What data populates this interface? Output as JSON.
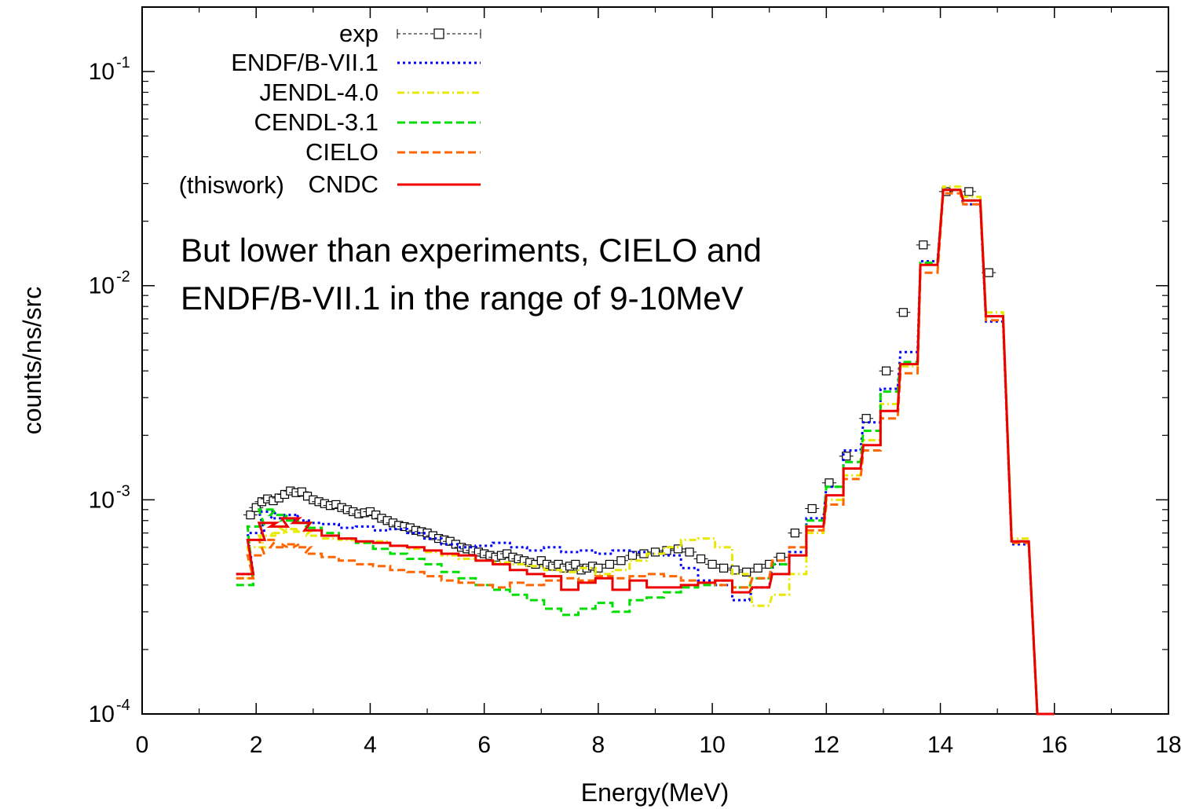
{
  "chart_data": {
    "type": "line",
    "xlabel": "Energy(MeV)",
    "ylabel": "counts/ns/src",
    "xlim": [
      0,
      18
    ],
    "ylim": [
      0.0001,
      0.2
    ],
    "y_scale": "log",
    "grid": false,
    "legend_position": "top-left",
    "x_ticks": [
      "0",
      "2",
      "4",
      "6",
      "8",
      "10",
      "12",
      "14",
      "16",
      "18"
    ],
    "y_ticks": [
      {
        "value": 0.1,
        "base": "10",
        "exp": "-1"
      },
      {
        "value": 0.01,
        "base": "10",
        "exp": "-2"
      },
      {
        "value": 0.001,
        "base": "10",
        "exp": "-3"
      },
      {
        "value": 0.0001,
        "base": "10",
        "exp": "-4"
      }
    ],
    "annotation": [
      "But lower than experiments, CIELO and",
      "ENDF/B-VII.1 in the range of 9-10MeV"
    ],
    "legend_prefix": "(thiswork)",
    "series": [
      {
        "name": "exp",
        "color": "#000000",
        "style": "markers",
        "x": [
          1.9,
          2.0,
          2.1,
          2.2,
          2.3,
          2.4,
          2.5,
          2.6,
          2.7,
          2.8,
          2.9,
          3.0,
          3.1,
          3.2,
          3.3,
          3.4,
          3.5,
          3.6,
          3.7,
          3.8,
          3.9,
          4.0,
          4.1,
          4.2,
          4.3,
          4.4,
          4.5,
          4.6,
          4.7,
          4.8,
          4.9,
          5.0,
          5.1,
          5.2,
          5.3,
          5.4,
          5.5,
          5.6,
          5.7,
          5.8,
          5.9,
          6.0,
          6.1,
          6.2,
          6.3,
          6.4,
          6.5,
          6.6,
          6.7,
          6.8,
          6.9,
          7.0,
          7.1,
          7.2,
          7.3,
          7.4,
          7.5,
          7.6,
          7.7,
          7.8,
          7.9,
          8.0,
          8.2,
          8.4,
          8.6,
          8.8,
          9.0,
          9.2,
          9.4,
          9.6,
          9.8,
          10.0,
          10.2,
          10.4,
          10.6,
          10.8,
          11.0,
          11.2,
          11.45,
          11.75,
          12.05,
          12.35,
          12.7,
          13.05,
          13.35,
          13.7,
          14.1,
          14.5,
          14.85
        ],
        "y": [
          0.00085,
          0.00092,
          0.00098,
          0.00101,
          0.00099,
          0.00102,
          0.00106,
          0.0011,
          0.00108,
          0.00109,
          0.00104,
          0.001,
          0.00098,
          0.00096,
          0.00094,
          0.00095,
          0.00092,
          0.0009,
          0.00088,
          0.00086,
          0.00087,
          0.00088,
          0.00085,
          0.00082,
          0.0008,
          0.00078,
          0.00076,
          0.00075,
          0.00074,
          0.00072,
          0.00071,
          0.0007,
          0.00068,
          0.00066,
          0.00065,
          0.00064,
          0.00062,
          0.0006,
          0.00059,
          0.00058,
          0.00057,
          0.00056,
          0.00055,
          0.00054,
          0.00055,
          0.00056,
          0.00054,
          0.00053,
          0.00052,
          0.00051,
          0.0005,
          0.00052,
          0.0005,
          0.00049,
          0.0005,
          0.00048,
          0.00049,
          0.0005,
          0.00047,
          0.00048,
          0.00049,
          0.00048,
          0.0005,
          0.00052,
          0.00055,
          0.00056,
          0.00057,
          0.00058,
          0.00059,
          0.00057,
          0.00053,
          0.0005,
          0.00048,
          0.00047,
          0.00046,
          0.00048,
          0.0005,
          0.00054,
          0.0007,
          0.00091,
          0.0012,
          0.0016,
          0.0024,
          0.004,
          0.0075,
          0.0155,
          0.0275,
          0.0275,
          0.0115
        ]
      },
      {
        "name": "ENDF/B-VII.1",
        "color": "#0000ff",
        "style": "dotted",
        "x": [
          1.8,
          2.0,
          2.2,
          2.4,
          2.6,
          2.8,
          3.0,
          3.3,
          3.6,
          3.9,
          4.2,
          4.5,
          4.8,
          5.1,
          5.4,
          5.7,
          6.0,
          6.3,
          6.6,
          6.9,
          7.2,
          7.5,
          7.8,
          8.1,
          8.4,
          8.7,
          9.0,
          9.3,
          9.6,
          9.9,
          10.2,
          10.5,
          10.85,
          11.2,
          11.5,
          11.8,
          12.15,
          12.45,
          12.8,
          13.1,
          13.45,
          13.8,
          14.2,
          14.55,
          14.95,
          15.4,
          15.85
        ],
        "y": [
          0.00045,
          0.0007,
          0.00088,
          0.00082,
          0.00085,
          0.0008,
          0.00078,
          0.00077,
          0.00074,
          0.00075,
          0.00072,
          0.00073,
          0.0007,
          0.00066,
          0.00062,
          0.0006,
          0.00061,
          0.00063,
          0.0006,
          0.00058,
          0.0006,
          0.00057,
          0.00058,
          0.00056,
          0.00058,
          0.00057,
          0.00056,
          0.00055,
          0.00048,
          0.00042,
          0.0004,
          0.00034,
          0.00039,
          0.0005,
          0.00057,
          0.00082,
          0.00115,
          0.0017,
          0.0023,
          0.0033,
          0.0049,
          0.013,
          0.028,
          0.024,
          0.0068,
          0.00062,
          0.0001
        ]
      },
      {
        "name": "JENDL-4.0",
        "color": "#e8e800",
        "style": "dashdot",
        "x": [
          1.8,
          2.0,
          2.2,
          2.4,
          2.6,
          2.8,
          3.0,
          3.3,
          3.6,
          3.9,
          4.2,
          4.5,
          4.8,
          5.1,
          5.4,
          5.7,
          6.0,
          6.3,
          6.6,
          6.9,
          7.2,
          7.5,
          7.8,
          8.1,
          8.4,
          8.7,
          9.0,
          9.3,
          9.6,
          9.9,
          10.2,
          10.5,
          10.85,
          11.2,
          11.5,
          11.8,
          12.15,
          12.45,
          12.8,
          13.1,
          13.45,
          13.8,
          14.2,
          14.55,
          14.95,
          15.4,
          15.85
        ],
        "y": [
          0.00043,
          0.0006,
          0.00068,
          0.0007,
          0.00073,
          0.00071,
          0.00068,
          0.00066,
          0.00065,
          0.00063,
          0.00064,
          0.00061,
          0.00059,
          0.00057,
          0.00055,
          0.00053,
          0.00052,
          0.00051,
          0.0005,
          0.00049,
          0.00047,
          0.00046,
          0.00048,
          0.00045,
          0.00047,
          0.00052,
          0.00056,
          0.0006,
          0.00065,
          0.00066,
          0.0006,
          0.00045,
          0.00032,
          0.00036,
          0.00045,
          0.0007,
          0.001,
          0.0013,
          0.0019,
          0.0028,
          0.0042,
          0.0125,
          0.029,
          0.026,
          0.0075,
          0.00066,
          0.0001
        ]
      },
      {
        "name": "CENDL-3.1",
        "color": "#00dd00",
        "style": "dashed",
        "x": [
          1.8,
          2.0,
          2.2,
          2.4,
          2.6,
          2.8,
          3.0,
          3.3,
          3.6,
          3.9,
          4.2,
          4.5,
          4.8,
          5.1,
          5.4,
          5.7,
          6.0,
          6.3,
          6.6,
          6.9,
          7.2,
          7.5,
          7.8,
          8.1,
          8.4,
          8.7,
          9.0,
          9.3,
          9.6,
          9.9,
          10.2,
          10.5,
          10.85,
          11.2,
          11.5,
          11.8,
          12.15,
          12.45,
          12.8,
          13.1,
          13.45,
          13.8,
          14.2,
          14.55,
          14.95,
          15.4,
          15.85
        ],
        "y": [
          0.0004,
          0.00075,
          0.0009,
          0.00085,
          0.0008,
          0.00078,
          0.00074,
          0.0007,
          0.00066,
          0.00063,
          0.00059,
          0.00056,
          0.00053,
          0.0005,
          0.00046,
          0.00043,
          0.0004,
          0.00038,
          0.00036,
          0.00034,
          0.00031,
          0.00029,
          0.00031,
          0.00033,
          0.0003,
          0.00034,
          0.00035,
          0.00037,
          0.00039,
          0.0004,
          0.00042,
          0.00039,
          0.00043,
          0.0005,
          0.00055,
          0.0008,
          0.00115,
          0.0015,
          0.0021,
          0.0032,
          0.0044,
          0.0128,
          0.028,
          0.025,
          0.0072,
          0.00064,
          0.0001
        ]
      },
      {
        "name": "CIELO",
        "color": "#ff6600",
        "style": "dashed",
        "x": [
          1.8,
          2.0,
          2.2,
          2.4,
          2.6,
          2.8,
          3.0,
          3.3,
          3.6,
          3.9,
          4.2,
          4.5,
          4.8,
          5.1,
          5.4,
          5.7,
          6.0,
          6.3,
          6.6,
          6.9,
          7.2,
          7.5,
          7.8,
          8.1,
          8.4,
          8.7,
          9.0,
          9.3,
          9.6,
          9.9,
          10.2,
          10.5,
          10.85,
          11.2,
          11.5,
          11.8,
          12.15,
          12.45,
          12.8,
          13.1,
          13.45,
          13.8,
          14.2,
          14.55,
          14.95,
          15.4,
          15.85
        ],
        "y": [
          0.00043,
          0.00055,
          0.00065,
          0.0006,
          0.00062,
          0.0006,
          0.00056,
          0.00054,
          0.00052,
          0.0005,
          0.00049,
          0.00047,
          0.00046,
          0.00044,
          0.00042,
          0.00041,
          0.0004,
          0.00039,
          0.00041,
          0.0004,
          0.00042,
          0.00043,
          0.00042,
          0.00044,
          0.00043,
          0.00044,
          0.00045,
          0.00044,
          0.00042,
          0.00041,
          0.0004,
          0.00039,
          0.00043,
          0.00052,
          0.0006,
          0.00072,
          0.00095,
          0.00125,
          0.0017,
          0.0024,
          0.0039,
          0.0115,
          0.027,
          0.024,
          0.0069,
          0.00063,
          0.0001
        ]
      },
      {
        "name": "CNDC",
        "color": "#ee0000",
        "style": "solid",
        "x": [
          1.8,
          2.0,
          2.2,
          2.4,
          2.6,
          2.8,
          3.0,
          3.3,
          3.6,
          3.9,
          4.2,
          4.5,
          4.8,
          5.1,
          5.4,
          5.7,
          6.0,
          6.3,
          6.6,
          6.9,
          7.2,
          7.5,
          7.8,
          8.1,
          8.4,
          8.7,
          9.0,
          9.3,
          9.6,
          9.9,
          10.2,
          10.5,
          10.85,
          11.2,
          11.5,
          11.8,
          12.15,
          12.45,
          12.8,
          13.1,
          13.45,
          13.8,
          14.2,
          14.55,
          14.95,
          15.4,
          15.85
        ],
        "y": [
          0.00045,
          0.00065,
          0.00078,
          0.00075,
          0.00082,
          0.00078,
          0.00072,
          0.00068,
          0.00066,
          0.00064,
          0.00063,
          0.00061,
          0.0006,
          0.00058,
          0.00056,
          0.00055,
          0.00052,
          0.0005,
          0.00047,
          0.00045,
          0.00044,
          0.00038,
          0.00041,
          0.00043,
          0.00038,
          0.00042,
          0.00039,
          0.00039,
          0.0004,
          0.00041,
          0.00042,
          0.00037,
          0.00039,
          0.00045,
          0.00055,
          0.00075,
          0.00105,
          0.0014,
          0.0018,
          0.0026,
          0.0043,
          0.0125,
          0.028,
          0.025,
          0.0072,
          0.00064,
          0.0001
        ]
      }
    ]
  }
}
